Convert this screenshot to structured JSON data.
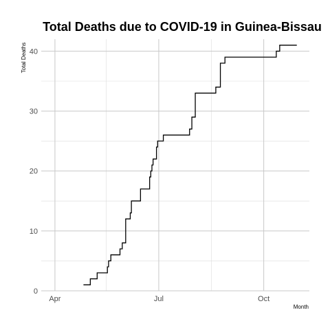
{
  "chart_data": {
    "type": "line",
    "title": "Total Deaths due to COVID-19 in Guinea-Bissau",
    "xlabel": "Month",
    "ylabel": "Total Deaths",
    "xlim": [
      "2020-03-20",
      "2020-11-10"
    ],
    "ylim": [
      0,
      42
    ],
    "x_ticks": [
      {
        "date": "2020-04-01",
        "label": "Apr"
      },
      {
        "date": "2020-07-01",
        "label": "Jul"
      },
      {
        "date": "2020-10-01",
        "label": "Oct"
      }
    ],
    "x_minor_ticks": [
      "2020-05-16",
      "2020-08-16"
    ],
    "y_ticks": [
      0,
      10,
      20,
      30,
      40
    ],
    "y_minor_ticks": [
      5,
      15,
      25,
      35
    ],
    "grid": true,
    "legend": "none",
    "series": [
      {
        "step": true,
        "x": [
          "2020-04-26",
          "2020-05-02",
          "2020-05-08",
          "2020-05-17",
          "2020-05-18",
          "2020-05-20",
          "2020-05-28",
          "2020-05-30",
          "2020-06-02",
          "2020-06-06",
          "2020-06-07",
          "2020-06-15",
          "2020-06-23",
          "2020-06-24",
          "2020-06-25",
          "2020-06-26",
          "2020-06-29",
          "2020-06-30",
          "2020-07-01",
          "2020-07-05",
          "2020-07-14",
          "2020-07-28",
          "2020-07-30",
          "2020-08-02",
          "2020-08-04",
          "2020-08-20",
          "2020-08-24",
          "2020-08-25",
          "2020-08-28",
          "2020-10-12",
          "2020-10-15",
          "2020-10-30"
        ],
        "y": [
          1,
          2,
          3,
          4,
          5,
          6,
          7,
          8,
          12,
          13,
          15,
          17,
          19,
          20,
          21,
          22,
          24,
          25,
          25,
          26,
          26,
          27,
          29,
          33,
          33,
          34,
          38,
          38,
          39,
          40,
          41,
          41
        ]
      }
    ]
  }
}
